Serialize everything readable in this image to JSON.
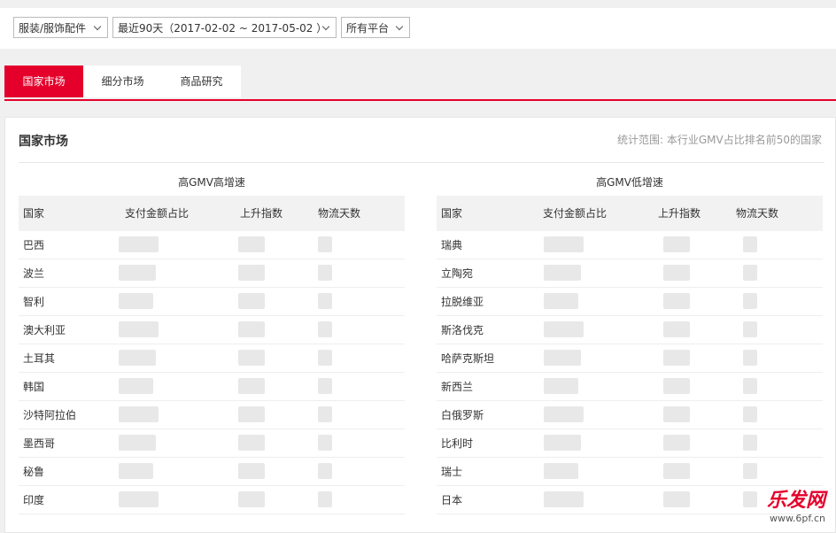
{
  "filters": [
    "服装/服饰配件",
    "最近90天（2017-02-02 ~ 2017-05-02 ）",
    "所有平台"
  ],
  "tabs": [
    "国家市场",
    "细分市场",
    "商品研究"
  ],
  "panel": {
    "title": "国家市场",
    "note": "统计范围: 本行业GMV占比排名前50的国家"
  },
  "tables": [
    {
      "title": "高GMV高增速",
      "columns": [
        "国家",
        "支付金额占比",
        "上升指数",
        "物流天数"
      ],
      "rows": [
        "巴西",
        "波兰",
        "智利",
        "澳大利亚",
        "土耳其",
        "韩国",
        "沙特阿拉伯",
        "墨西哥",
        "秘鲁",
        "印度"
      ]
    },
    {
      "title": "高GMV低增速",
      "columns": [
        "国家",
        "支付金额占比",
        "上升指数",
        "物流天数"
      ],
      "rows": [
        "瑞典",
        "立陶宛",
        "拉脱维亚",
        "斯洛伐克",
        "哈萨克斯坦",
        "新西兰",
        "白俄罗斯",
        "比利时",
        "瑞士",
        "日本"
      ]
    }
  ],
  "watermark": {
    "brand": "乐发网",
    "url": "www.6pf.cn"
  }
}
